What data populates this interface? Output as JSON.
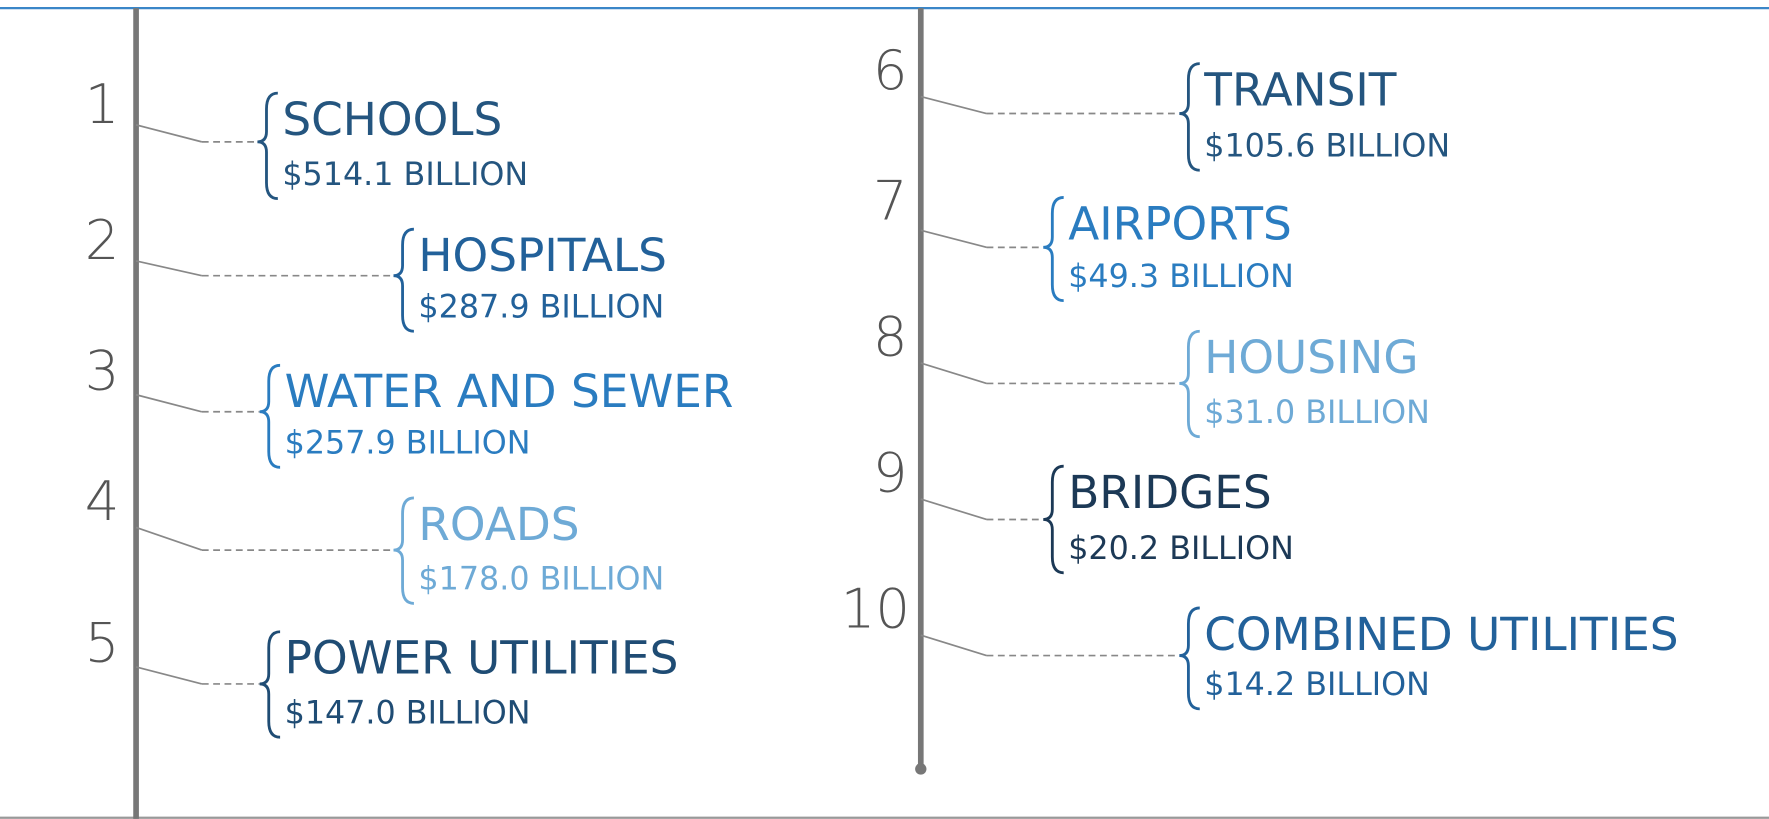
{
  "items": [
    {
      "rank": "1",
      "name": "SCHOOLS",
      "amount": "$514.1 BILLION",
      "color": "#24557f"
    },
    {
      "rank": "2",
      "name": "HOSPITALS",
      "amount": "$287.9 BILLION",
      "color": "#22619a"
    },
    {
      "rank": "3",
      "name": "WATER AND SEWER",
      "amount": "$257.9 BILLION",
      "color": "#2a7cc0"
    },
    {
      "rank": "4",
      "name": "ROADS",
      "amount": "$178.0 BILLION",
      "color": "#6eaad6"
    },
    {
      "rank": "5",
      "name": "POWER UTILITIES",
      "amount": "$147.0 BILLION",
      "color": "#1f4c74"
    },
    {
      "rank": "6",
      "name": "TRANSIT",
      "amount": "$105.6 BILLION",
      "color": "#24557f"
    },
    {
      "rank": "7",
      "name": "AIRPORTS",
      "amount": "$49.3 BILLION",
      "color": "#2a7cc0"
    },
    {
      "rank": "8",
      "name": "HOUSING",
      "amount": "$31.0 BILLION",
      "color": "#6eaad6"
    },
    {
      "rank": "9",
      "name": "BRIDGES",
      "amount": "$20.2 BILLION",
      "color": "#1c3956"
    },
    {
      "rank": "10",
      "name": "COMBINED UTILITIES",
      "amount": "$14.2 BILLION",
      "color": "#22619a"
    }
  ]
}
